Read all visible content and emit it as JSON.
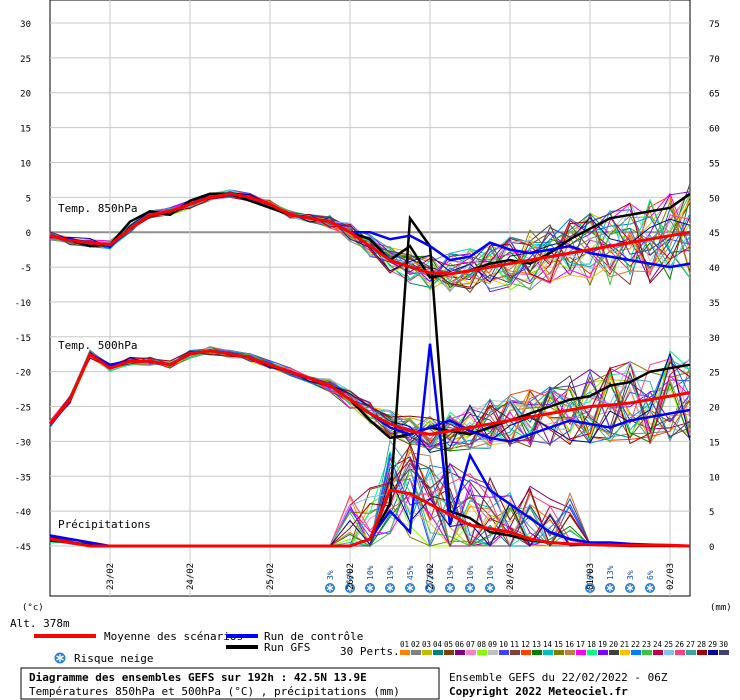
{
  "chart_data": {
    "type": "line",
    "left_axis": {
      "unit": "(°c)",
      "ticks": [
        "30",
        "25",
        "20",
        "15",
        "10",
        "5",
        "0",
        "-5",
        "-10",
        "-15",
        "-20",
        "-25",
        "-30",
        "-35",
        "-40",
        "-45"
      ],
      "range": [
        -45,
        30
      ]
    },
    "right_axis": {
      "unit": "(mm)",
      "ticks": [
        "75",
        "70",
        "65",
        "60",
        "55",
        "50",
        "45",
        "40",
        "35",
        "30",
        "25",
        "20",
        "15",
        "10",
        "5",
        "0"
      ],
      "range": [
        0,
        75
      ]
    },
    "altitude": "Alt. 378m",
    "dates": [
      "23/02",
      "24/02",
      "25/02",
      "26/02",
      "27/02",
      "28/02",
      "01/03",
      "02/03"
    ],
    "panel_labels": {
      "t850": "Temp. 850hPa",
      "t500": "Temp. 500hPa",
      "precip": "Précipitations"
    },
    "snow_risk_labels": [
      "3%",
      "6%",
      "10%",
      "19%",
      "45%",
      "26%",
      "19%",
      "10%",
      "10%",
      "6%",
      "13%",
      "3%",
      "6%"
    ],
    "time_hours": [
      0,
      6,
      12,
      18,
      24,
      30,
      36,
      42,
      48,
      54,
      60,
      66,
      72,
      78,
      84,
      90,
      96,
      102,
      108,
      114,
      120,
      126,
      132,
      138,
      144,
      150,
      156,
      162,
      168,
      174,
      180,
      186,
      192
    ],
    "series": [
      {
        "name": "Moyenne des scénarios",
        "color": "#ff0000",
        "t850": [
          -0.5,
          -1.2,
          -1.5,
          -1.8,
          0.5,
          2.5,
          3,
          4,
          5,
          5.5,
          5,
          4,
          2.5,
          2,
          1.5,
          0,
          -2,
          -4,
          -5,
          -5.8,
          -6,
          -5.5,
          -5,
          -4.5,
          -4,
          -3.5,
          -3,
          -2.5,
          -2,
          -1.5,
          -1,
          -0.5,
          0
        ],
        "t500": [
          -27.5,
          -24,
          -17.5,
          -19.5,
          -18.5,
          -18.5,
          -19,
          -17.5,
          -17,
          -17.5,
          -18,
          -19,
          -20,
          -21,
          -22,
          -24,
          -26,
          -27.5,
          -28.5,
          -29,
          -28.5,
          -28,
          -27.5,
          -27,
          -26.5,
          -26,
          -25.5,
          -25,
          -24.8,
          -24.5,
          -24,
          -23.5,
          -23
        ],
        "precip": [
          1,
          0.5,
          0,
          0,
          0,
          0,
          0,
          0,
          0,
          0,
          0,
          0,
          0,
          0,
          0,
          0,
          1,
          8,
          7.5,
          6,
          4.5,
          3,
          2.5,
          2,
          1,
          0.5,
          0.3,
          0.2,
          0.1,
          0.1,
          0.1,
          0.1,
          0
        ]
      },
      {
        "name": "Run de contrôle",
        "color": "#0000ff",
        "t850": [
          -0.5,
          -1,
          -1.5,
          -2,
          0.5,
          2.5,
          3,
          4,
          5,
          5.5,
          5,
          4,
          2.5,
          2,
          1.5,
          0,
          0,
          -1,
          -0.5,
          -2,
          -4,
          -3.5,
          -1.5,
          -2.5,
          -3,
          -2.5,
          -2,
          -3,
          -3.5,
          -4,
          -4.5,
          -5,
          -4.5
        ],
        "t500": [
          -27.5,
          -24,
          -17.5,
          -19,
          -18.5,
          -18.5,
          -19,
          -17.5,
          -17,
          -17.5,
          -18,
          -19,
          -20,
          -21,
          -22,
          -24,
          -26,
          -28,
          -29,
          -28,
          -27,
          -28.5,
          -29.5,
          -30,
          -29,
          -28,
          -27,
          -27.5,
          -28,
          -27,
          -26.5,
          -26,
          -25.5
        ],
        "precip": [
          1.5,
          1,
          0.5,
          0,
          0,
          0,
          0,
          0,
          0,
          0,
          0,
          0,
          0,
          0,
          0,
          0,
          1,
          5,
          2,
          29,
          3,
          13,
          8,
          6,
          4,
          2,
          1,
          0.5,
          0.5,
          0.3,
          0.2,
          0.1,
          0
        ]
      },
      {
        "name": "Run GFS",
        "color": "#000000",
        "t850": [
          -0.5,
          -1.2,
          -2,
          -1.8,
          1.5,
          3,
          2.5,
          4.5,
          5.5,
          5.5,
          4.5,
          3.5,
          2.5,
          2,
          1.5,
          0,
          -1,
          -4,
          -2,
          -6.5,
          -6,
          -5.5,
          -4.5,
          -4,
          -4.5,
          -3,
          -1,
          0.5,
          2,
          2.5,
          3,
          3.5,
          5.5
        ],
        "t500": [
          -27.5,
          -24,
          -17.5,
          -19.5,
          -18.5,
          -18.5,
          -19,
          -17.5,
          -17,
          -17.5,
          -18,
          -19,
          -20,
          -21,
          -22,
          -24,
          -27,
          -29.5,
          -29,
          -28,
          -28.5,
          -29,
          -28,
          -27,
          -26,
          -25,
          -24,
          -23.5,
          -22,
          -21.5,
          -20,
          -19.5,
          -19
        ],
        "precip": [
          0.8,
          0.5,
          0.2,
          0,
          0,
          0,
          0,
          0,
          0,
          0,
          0,
          0,
          0,
          0,
          0,
          0,
          1,
          6,
          47,
          43,
          5,
          4,
          2,
          1.5,
          0.8,
          0.5,
          0.3,
          0.2,
          0.1,
          0,
          0,
          0,
          0
        ]
      }
    ]
  },
  "legend": {
    "mean_label": "Moyenne des scénarios",
    "control_label": "Run de contrôle",
    "gfs_label": "Run GFS",
    "snow_label": "Risque neige",
    "perts_label": "30 Perts.",
    "pert_numbers": [
      "01",
      "02",
      "03",
      "04",
      "05",
      "06",
      "07",
      "08",
      "09",
      "10",
      "11",
      "12",
      "13",
      "14",
      "15",
      "16",
      "17",
      "18",
      "19",
      "20",
      "21",
      "22",
      "23",
      "24",
      "25",
      "26",
      "27",
      "28",
      "29",
      "30"
    ],
    "pert_colors": [
      "#ff8000",
      "#808080",
      "#c0c000",
      "#008080",
      "#804000",
      "#800080",
      "#ff80c0",
      "#80ff00",
      "#c0c0c0",
      "#4040ff",
      "#804040",
      "#ff4000",
      "#008000",
      "#00c0c0",
      "#808000",
      "#c08040",
      "#ff00ff",
      "#00ff80",
      "#8000ff",
      "#404040",
      "#ffc000",
      "#0080ff",
      "#40c040",
      "#c00040",
      "#80c0ff",
      "#ff4080",
      "#40a0a0",
      "#a00000",
      "#0000a0",
      "#404080"
    ]
  },
  "footer": {
    "title": "Diagramme des ensembles GEFS sur 192h : 42.5N 13.9E",
    "subtitle": "Températures 850hPa et 500hPa (°C) , précipitations (mm)",
    "run": "Ensemble GEFS du 22/02/2022 - 06Z",
    "copyright": "Copyright 2022 Meteociel.fr"
  }
}
